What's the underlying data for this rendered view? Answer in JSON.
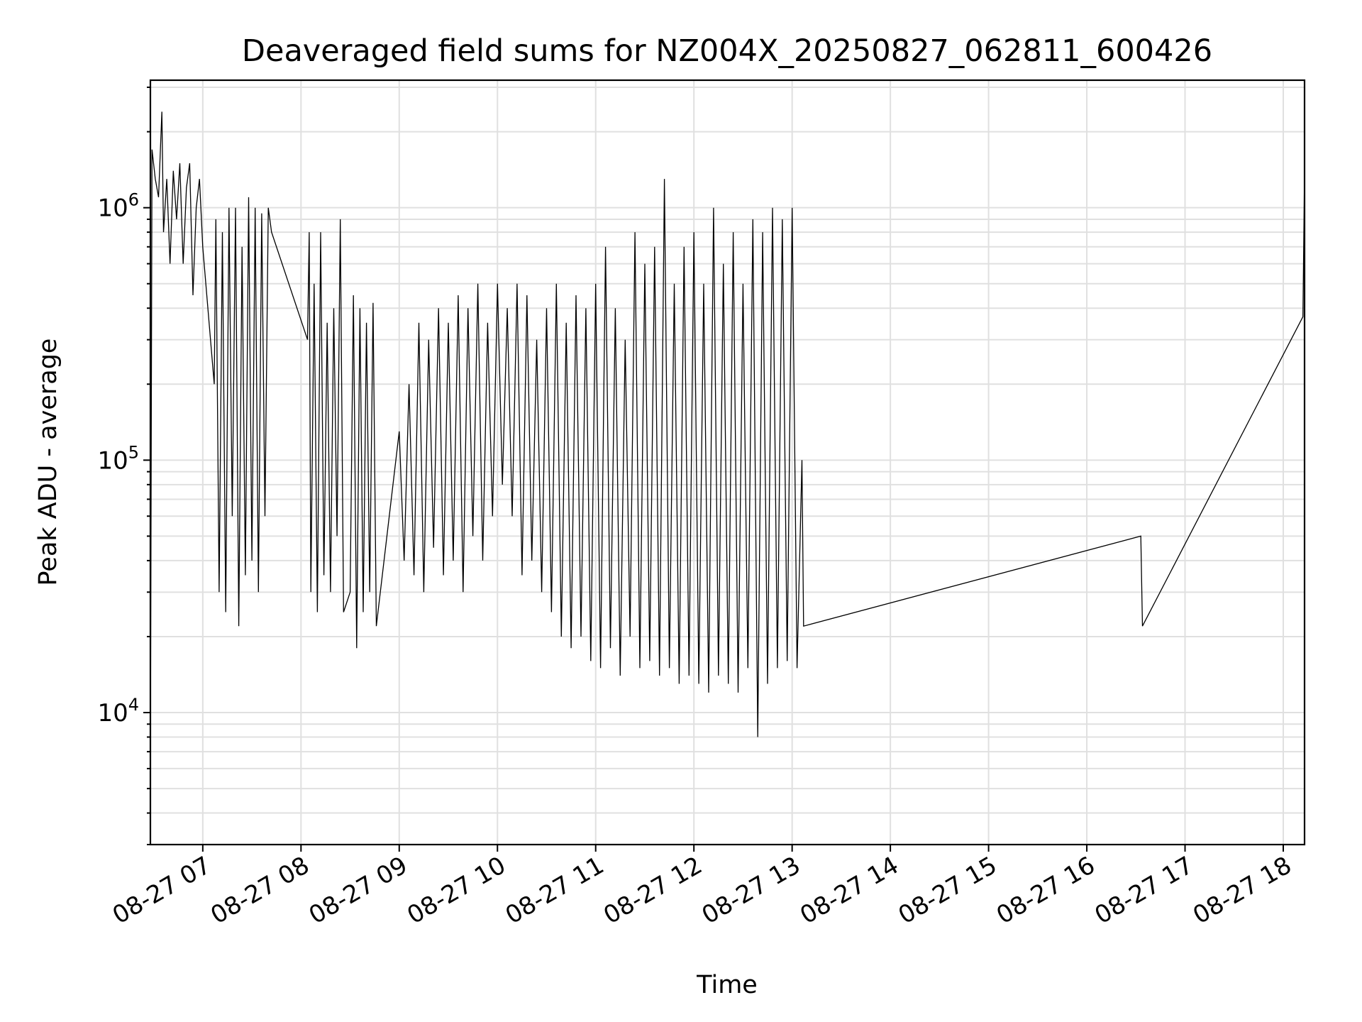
{
  "chart_data": {
    "type": "line",
    "title": "Deaveraged field sums for NZ004X_20250827_062811_600426",
    "xlabel": "Time",
    "ylabel": "Peak ADU - average",
    "yscale": "log",
    "ylim": [
      3000,
      3200000
    ],
    "xlim": [
      "2025-08-27 06:28",
      "2025-08-27 18:13"
    ],
    "grid": true,
    "legend": "none",
    "line_color": "#000000",
    "grid_color": "#e0e0e0",
    "x_tick_labels": [
      "08-27 07",
      "08-27 08",
      "08-27 09",
      "08-27 10",
      "08-27 11",
      "08-27 12",
      "08-27 13",
      "08-27 14",
      "08-27 15",
      "08-27 16",
      "08-27 17",
      "08-27 18"
    ],
    "y_tick_labels": [
      {
        "base": "10",
        "exp": "4",
        "value": 10000
      },
      {
        "base": "10",
        "exp": "5",
        "value": 100000
      },
      {
        "base": "10",
        "exp": "6",
        "value": 1000000
      }
    ],
    "series": [
      {
        "x": [
          "2025-08-27 06:28",
          "2025-08-27 06:29",
          "2025-08-27 06:31",
          "2025-08-27 06:33",
          "2025-08-27 06:35",
          "2025-08-27 06:36",
          "2025-08-27 06:38",
          "2025-08-27 06:40",
          "2025-08-27 06:42",
          "2025-08-27 06:44",
          "2025-08-27 06:46",
          "2025-08-27 06:48",
          "2025-08-27 06:50",
          "2025-08-27 06:52",
          "2025-08-27 06:54",
          "2025-08-27 06:56",
          "2025-08-27 06:58",
          "2025-08-27 07:00",
          "2025-08-27 07:07",
          "2025-08-27 07:08",
          "2025-08-27 07:10",
          "2025-08-27 07:12",
          "2025-08-27 07:14",
          "2025-08-27 07:16",
          "2025-08-27 07:18",
          "2025-08-27 07:20",
          "2025-08-27 07:22",
          "2025-08-27 07:24",
          "2025-08-27 07:26",
          "2025-08-27 07:28",
          "2025-08-27 07:30",
          "2025-08-27 07:32",
          "2025-08-27 07:34",
          "2025-08-27 07:36",
          "2025-08-27 07:38",
          "2025-08-27 07:40",
          "2025-08-27 07:42",
          "2025-08-27 08:04",
          "2025-08-27 08:05",
          "2025-08-27 08:06",
          "2025-08-27 08:08",
          "2025-08-27 08:10",
          "2025-08-27 08:12",
          "2025-08-27 08:14",
          "2025-08-27 08:16",
          "2025-08-27 08:18",
          "2025-08-27 08:20",
          "2025-08-27 08:22",
          "2025-08-27 08:24",
          "2025-08-27 08:26",
          "2025-08-27 08:30",
          "2025-08-27 08:32",
          "2025-08-27 08:34",
          "2025-08-27 08:36",
          "2025-08-27 08:38",
          "2025-08-27 08:40",
          "2025-08-27 08:42",
          "2025-08-27 08:44",
          "2025-08-27 08:46",
          "2025-08-27 09:00",
          "2025-08-27 09:03",
          "2025-08-27 09:06",
          "2025-08-27 09:09",
          "2025-08-27 09:12",
          "2025-08-27 09:15",
          "2025-08-27 09:18",
          "2025-08-27 09:21",
          "2025-08-27 09:24",
          "2025-08-27 09:27",
          "2025-08-27 09:30",
          "2025-08-27 09:33",
          "2025-08-27 09:36",
          "2025-08-27 09:39",
          "2025-08-27 09:42",
          "2025-08-27 09:45",
          "2025-08-27 09:48",
          "2025-08-27 09:51",
          "2025-08-27 09:54",
          "2025-08-27 09:57",
          "2025-08-27 10:00",
          "2025-08-27 10:03",
          "2025-08-27 10:06",
          "2025-08-27 10:09",
          "2025-08-27 10:12",
          "2025-08-27 10:15",
          "2025-08-27 10:18",
          "2025-08-27 10:21",
          "2025-08-27 10:24",
          "2025-08-27 10:27",
          "2025-08-27 10:30",
          "2025-08-27 10:33",
          "2025-08-27 10:36",
          "2025-08-27 10:39",
          "2025-08-27 10:42",
          "2025-08-27 10:45",
          "2025-08-27 10:48",
          "2025-08-27 10:51",
          "2025-08-27 10:54",
          "2025-08-27 10:57",
          "2025-08-27 11:00",
          "2025-08-27 11:03",
          "2025-08-27 11:06",
          "2025-08-27 11:09",
          "2025-08-27 11:12",
          "2025-08-27 11:15",
          "2025-08-27 11:18",
          "2025-08-27 11:21",
          "2025-08-27 11:24",
          "2025-08-27 11:27",
          "2025-08-27 11:30",
          "2025-08-27 11:33",
          "2025-08-27 11:36",
          "2025-08-27 11:39",
          "2025-08-27 11:42",
          "2025-08-27 11:45",
          "2025-08-27 11:48",
          "2025-08-27 11:51",
          "2025-08-27 11:54",
          "2025-08-27 11:57",
          "2025-08-27 12:00",
          "2025-08-27 12:03",
          "2025-08-27 12:06",
          "2025-08-27 12:09",
          "2025-08-27 12:12",
          "2025-08-27 12:15",
          "2025-08-27 12:18",
          "2025-08-27 12:21",
          "2025-08-27 12:24",
          "2025-08-27 12:27",
          "2025-08-27 12:30",
          "2025-08-27 12:33",
          "2025-08-27 12:36",
          "2025-08-27 12:39",
          "2025-08-27 12:42",
          "2025-08-27 12:45",
          "2025-08-27 12:48",
          "2025-08-27 12:51",
          "2025-08-27 12:54",
          "2025-08-27 12:57",
          "2025-08-27 13:00",
          "2025-08-27 13:03",
          "2025-08-27 13:06",
          "2025-08-27 13:07",
          "2025-08-27 16:33",
          "2025-08-27 16:34",
          "2025-08-27 18:12",
          "2025-08-27 18:13"
        ],
        "y": [
          6000,
          1700000,
          1300000,
          1100000,
          2400000,
          800000,
          1300000,
          600000,
          1400000,
          900000,
          1500000,
          600000,
          1200000,
          1500000,
          450000,
          1000000,
          1300000,
          700000,
          200000,
          900000,
          30000,
          800000,
          25000,
          1000000,
          60000,
          1000000,
          22000,
          700000,
          35000,
          1100000,
          40000,
          1000000,
          30000,
          950000,
          60000,
          1000000,
          800000,
          300000,
          800000,
          30000,
          500000,
          25000,
          800000,
          35000,
          350000,
          30000,
          400000,
          50000,
          900000,
          25000,
          30000,
          450000,
          18000,
          400000,
          25000,
          350000,
          30000,
          420000,
          22000,
          130000,
          40000,
          200000,
          35000,
          350000,
          30000,
          300000,
          45000,
          400000,
          35000,
          350000,
          40000,
          450000,
          30000,
          400000,
          50000,
          500000,
          40000,
          350000,
          60000,
          500000,
          80000,
          400000,
          60000,
          500000,
          35000,
          450000,
          40000,
          300000,
          30000,
          400000,
          25000,
          500000,
          20000,
          350000,
          18000,
          450000,
          20000,
          400000,
          16000,
          500000,
          15000,
          700000,
          18000,
          400000,
          14000,
          300000,
          20000,
          800000,
          15000,
          600000,
          16000,
          700000,
          14000,
          1300000,
          15000,
          500000,
          13000,
          700000,
          14000,
          800000,
          13000,
          500000,
          12000,
          1000000,
          14000,
          600000,
          13000,
          800000,
          12000,
          500000,
          15000,
          900000,
          8000,
          800000,
          13000,
          1000000,
          15000,
          900000,
          16000,
          1000000,
          15000,
          100000,
          22000,
          50000,
          22000,
          370000,
          1400000
        ]
      }
    ]
  }
}
